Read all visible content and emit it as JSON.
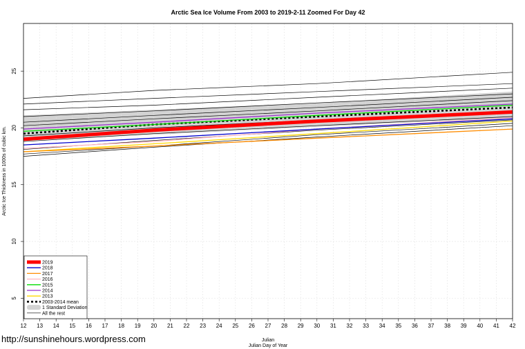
{
  "chart_data": {
    "type": "line",
    "title": "Arctic Sea Ice Volume From 2003 to 2019-2-11 Zoomed For Day 42",
    "xlabel_top": "Julian",
    "xlabel": "Julian Day of Year",
    "ylabel": "Arctic Ice Thickness in 1000s of cubic km.",
    "xlim": [
      12,
      42
    ],
    "ylim": [
      3.2,
      29.2
    ],
    "x_ticks": [
      12,
      13,
      14,
      15,
      16,
      17,
      18,
      19,
      20,
      21,
      22,
      23,
      24,
      25,
      26,
      27,
      28,
      29,
      30,
      31,
      32,
      33,
      34,
      35,
      36,
      37,
      38,
      39,
      40,
      41,
      42
    ],
    "y_ticks": [
      5,
      10,
      15,
      20,
      25
    ],
    "grid": true,
    "legend_position": "bottom-left",
    "band": {
      "name": "1 Standard Deviation",
      "color": "#d3d3d3",
      "x": [
        12,
        20,
        30,
        42
      ],
      "upper": [
        21.1,
        21.6,
        22.2,
        23.2
      ],
      "lower": [
        18.9,
        19.4,
        20.1,
        20.9
      ]
    },
    "series": [
      {
        "name": "2019",
        "color": "#ff0000",
        "width": 5,
        "dash": "",
        "x": [
          12,
          20,
          30,
          42
        ],
        "values": [
          19.0,
          19.8,
          20.6,
          21.4
        ]
      },
      {
        "name": "2018",
        "color": "#0000cd",
        "width": 1.3,
        "dash": "",
        "x": [
          12,
          20,
          30,
          42
        ],
        "values": [
          18.5,
          19.1,
          19.9,
          20.8
        ]
      },
      {
        "name": "2017",
        "color": "#ff8c00",
        "width": 1.3,
        "dash": "",
        "x": [
          12,
          20,
          30,
          42
        ],
        "values": [
          17.9,
          18.4,
          19.1,
          19.9
        ]
      },
      {
        "name": "2016",
        "color": "#ffb6c1",
        "width": 1.3,
        "dash": "",
        "x": [
          12,
          20,
          30,
          42
        ],
        "values": [
          18.2,
          18.8,
          19.9,
          20.9
        ]
      },
      {
        "name": "2015",
        "color": "#00dd00",
        "width": 1.3,
        "dash": "",
        "x": [
          12,
          20,
          30,
          42
        ],
        "values": [
          19.7,
          20.3,
          21.1,
          22.0
        ]
      },
      {
        "name": "2014",
        "color": "#9932cc",
        "width": 1.3,
        "dash": "",
        "x": [
          12,
          20,
          30,
          42
        ],
        "values": [
          19.9,
          20.5,
          21.3,
          22.1
        ]
      },
      {
        "name": "2013",
        "color": "#ffd700",
        "width": 1.3,
        "dash": "",
        "x": [
          12,
          20,
          30,
          42
        ],
        "values": [
          17.9,
          18.6,
          19.5,
          20.6
        ]
      },
      {
        "name": "2003-2014 mean",
        "color": "#000000",
        "width": 2.6,
        "dash": "3,3",
        "x": [
          12,
          20,
          30,
          42
        ],
        "values": [
          19.5,
          20.3,
          21.0,
          21.8
        ]
      }
    ],
    "other_series": {
      "name": "All the rest",
      "color": "#000000",
      "width": 0.7,
      "x": [
        12,
        20,
        30,
        42
      ],
      "lines": [
        [
          22.6,
          23.3,
          23.9,
          24.9
        ],
        [
          22.1,
          22.6,
          23.2,
          23.9
        ],
        [
          21.6,
          22.0,
          22.7,
          23.5
        ],
        [
          21.0,
          21.5,
          22.2,
          23.0
        ],
        [
          20.5,
          21.1,
          21.8,
          22.7
        ],
        [
          20.2,
          20.8,
          21.5,
          22.4
        ],
        [
          19.3,
          20.0,
          20.7,
          21.4
        ],
        [
          18.8,
          19.5,
          20.2,
          21.0
        ],
        [
          18.1,
          18.9,
          19.8,
          20.7
        ],
        [
          17.7,
          18.4,
          19.4,
          20.4
        ],
        [
          17.5,
          18.3,
          19.2,
          20.2
        ]
      ]
    },
    "legend": [
      {
        "label": "2019",
        "kind": "line",
        "color": "#ff0000",
        "width": 5,
        "dash": ""
      },
      {
        "label": "2018",
        "kind": "line",
        "color": "#0000cd",
        "width": 1.3,
        "dash": ""
      },
      {
        "label": "2017",
        "kind": "line",
        "color": "#ff8c00",
        "width": 1.3,
        "dash": ""
      },
      {
        "label": "2016",
        "kind": "line",
        "color": "#ffb6c1",
        "width": 1.3,
        "dash": ""
      },
      {
        "label": "2015",
        "kind": "line",
        "color": "#00dd00",
        "width": 1.3,
        "dash": ""
      },
      {
        "label": "2014",
        "kind": "line",
        "color": "#9932cc",
        "width": 1.3,
        "dash": ""
      },
      {
        "label": "2013",
        "kind": "line",
        "color": "#ffd700",
        "width": 1.3,
        "dash": ""
      },
      {
        "label": "2003-2014 mean",
        "kind": "line",
        "color": "#000000",
        "width": 2.6,
        "dash": "3,3"
      },
      {
        "label": "1 Standard Deviation",
        "kind": "band",
        "color": "#d3d3d3",
        "width": 0,
        "dash": ""
      },
      {
        "label": "All the rest",
        "kind": "line",
        "color": "#000000",
        "width": 0.7,
        "dash": ""
      }
    ]
  },
  "watermark": "http://sunshinehours.wordpress.com"
}
